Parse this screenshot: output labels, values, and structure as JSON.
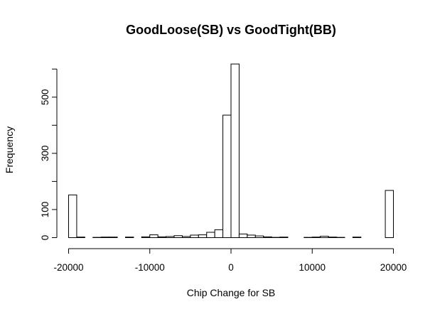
{
  "chart_data": {
    "type": "bar",
    "title": "GoodLoose(SB) vs GoodTight(BB)",
    "xlabel": "Chip Change for SB",
    "ylabel": "Frequency",
    "xlim": [
      -20000,
      20000
    ],
    "ylim": [
      0,
      620
    ],
    "bin_width": 1000,
    "x_ticks": [
      -20000,
      -10000,
      0,
      10000,
      20000
    ],
    "x_tick_labels": [
      "-20000",
      "-10000",
      "0",
      "10000",
      "20000"
    ],
    "y_ticks": [
      0,
      100,
      300,
      500
    ],
    "y_tick_labels": [
      "0",
      "100",
      "300",
      "500"
    ],
    "grid": false,
    "legend": "none",
    "bins": [
      {
        "x0": -20000,
        "x1": -19000,
        "count": 152
      },
      {
        "x0": -19000,
        "x1": -18000,
        "count": 2
      },
      {
        "x0": -18000,
        "x1": -17000,
        "count": 0
      },
      {
        "x0": -17000,
        "x1": -16000,
        "count": 1
      },
      {
        "x0": -16000,
        "x1": -15000,
        "count": 2
      },
      {
        "x0": -15000,
        "x1": -14000,
        "count": 2
      },
      {
        "x0": -14000,
        "x1": -13000,
        "count": 0
      },
      {
        "x0": -13000,
        "x1": -12000,
        "count": 2
      },
      {
        "x0": -12000,
        "x1": -11000,
        "count": 0
      },
      {
        "x0": -11000,
        "x1": -10000,
        "count": 3
      },
      {
        "x0": -10000,
        "x1": -9000,
        "count": 10
      },
      {
        "x0": -9000,
        "x1": -8000,
        "count": 3
      },
      {
        "x0": -8000,
        "x1": -7000,
        "count": 4
      },
      {
        "x0": -7000,
        "x1": -6000,
        "count": 7
      },
      {
        "x0": -6000,
        "x1": -5000,
        "count": 4
      },
      {
        "x0": -5000,
        "x1": -4000,
        "count": 9
      },
      {
        "x0": -4000,
        "x1": -3000,
        "count": 10
      },
      {
        "x0": -3000,
        "x1": -2000,
        "count": 19
      },
      {
        "x0": -2000,
        "x1": -1000,
        "count": 28
      },
      {
        "x0": -1000,
        "x1": 0,
        "count": 436
      },
      {
        "x0": 0,
        "x1": 1000,
        "count": 618
      },
      {
        "x0": 1000,
        "x1": 2000,
        "count": 13
      },
      {
        "x0": 2000,
        "x1": 3000,
        "count": 9
      },
      {
        "x0": 3000,
        "x1": 4000,
        "count": 6
      },
      {
        "x0": 4000,
        "x1": 5000,
        "count": 3
      },
      {
        "x0": 5000,
        "x1": 6000,
        "count": 1
      },
      {
        "x0": 6000,
        "x1": 7000,
        "count": 2
      },
      {
        "x0": 7000,
        "x1": 8000,
        "count": 0
      },
      {
        "x0": 8000,
        "x1": 9000,
        "count": 0
      },
      {
        "x0": 9000,
        "x1": 10000,
        "count": 1
      },
      {
        "x0": 10000,
        "x1": 11000,
        "count": 2
      },
      {
        "x0": 11000,
        "x1": 12000,
        "count": 5
      },
      {
        "x0": 12000,
        "x1": 13000,
        "count": 2
      },
      {
        "x0": 13000,
        "x1": 14000,
        "count": 1
      },
      {
        "x0": 14000,
        "x1": 15000,
        "count": 0
      },
      {
        "x0": 15000,
        "x1": 16000,
        "count": 2
      },
      {
        "x0": 16000,
        "x1": 17000,
        "count": 0
      },
      {
        "x0": 17000,
        "x1": 18000,
        "count": 0
      },
      {
        "x0": 18000,
        "x1": 19000,
        "count": 0
      },
      {
        "x0": 19000,
        "x1": 20000,
        "count": 168
      }
    ]
  }
}
